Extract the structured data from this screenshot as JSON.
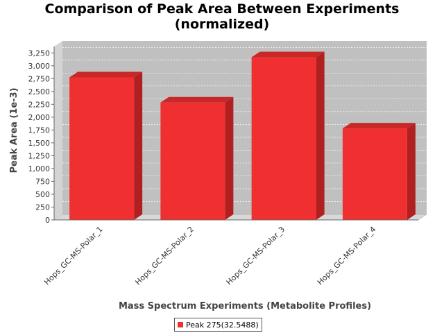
{
  "chart_data": {
    "type": "bar",
    "title_line1": "Comparison of Peak Area Between Experiments",
    "title_line2": "(normalized)",
    "xlabel": "Mass Spectrum Experiments (Metabolite Profiles)",
    "ylabel": "Peak Area (1e-3)",
    "categories": [
      "Hops_GC-MS-Polar_1",
      "Hops_GC-MS-Polar_2",
      "Hops_GC-MS-Polar_3",
      "Hops_GC-MS-Polar_4"
    ],
    "series": [
      {
        "name": "Peak 275(32.5488)",
        "values": [
          2775,
          2285,
          3165,
          1780
        ]
      }
    ],
    "ylim": [
      0,
      3375
    ],
    "yticks": [
      0,
      250,
      500,
      750,
      1000,
      1250,
      1500,
      1750,
      2000,
      2250,
      2500,
      2750,
      3000,
      3250
    ],
    "ytick_labels": [
      "0",
      "250",
      "500",
      "750",
      "1,000",
      "1,250",
      "1,500",
      "1,750",
      "2,000",
      "2,250",
      "2,500",
      "2,750",
      "3,000",
      "3,250"
    ],
    "grid": true,
    "legend_position": "bottom-center",
    "colors": {
      "bar_front": "#f03030",
      "bar_side": "#b02020",
      "bar_top": "#c82828",
      "plot_background": "#c0c0c0",
      "plot_floor": "#d8d8d8"
    }
  }
}
